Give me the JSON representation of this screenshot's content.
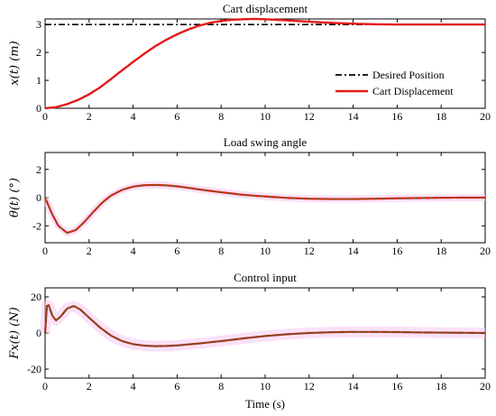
{
  "colors": {
    "desired": "#000000",
    "cart": "#e31a1c",
    "swing": "#e31a1c",
    "swing_overlay": "#6b6b10",
    "control": "#c0392b",
    "control_overlay": "#6b4a10",
    "band": "#f6c9f3"
  },
  "xlabel": "Time (s)",
  "chart_data": [
    {
      "type": "line",
      "title": "Cart displacement",
      "ylabel": "x(t) (m)",
      "xlim": [
        0,
        20
      ],
      "ylim": [
        0,
        3.2
      ],
      "xticks": [
        "0",
        "2",
        "4",
        "6",
        "8",
        "10",
        "12",
        "14",
        "16",
        "18",
        "20"
      ],
      "yticks": [
        "0",
        "1",
        "2",
        "3"
      ],
      "legend_position": "bottom-right",
      "series": [
        {
          "name": "Desired Position",
          "style": "dashdot",
          "x": [
            0,
            20
          ],
          "y": [
            3,
            3
          ]
        },
        {
          "name": "Cart Displacement",
          "style": "solid",
          "x": [
            0,
            0.5,
            1,
            1.5,
            2,
            2.5,
            3,
            3.5,
            4,
            4.5,
            5,
            5.5,
            6,
            6.5,
            7,
            7.5,
            8,
            8.5,
            9,
            9.5,
            10,
            11,
            12,
            13,
            14,
            15,
            16,
            17,
            18,
            19,
            20
          ],
          "y": [
            0,
            0.04,
            0.15,
            0.3,
            0.5,
            0.75,
            1.05,
            1.36,
            1.66,
            1.95,
            2.22,
            2.45,
            2.65,
            2.82,
            2.96,
            3.06,
            3.13,
            3.17,
            3.19,
            3.2,
            3.19,
            3.15,
            3.1,
            3.06,
            3.03,
            3.01,
            3.0,
            3.0,
            3.0,
            3.0,
            3.0
          ]
        }
      ]
    },
    {
      "type": "line",
      "title": "Load swing angle",
      "ylabel": "θ(t) (°)",
      "xlim": [
        0,
        20
      ],
      "ylim": [
        -3.2,
        3.2
      ],
      "xticks": [
        "0",
        "2",
        "4",
        "6",
        "8",
        "10",
        "12",
        "14",
        "16",
        "18",
        "20"
      ],
      "yticks": [
        "-2",
        "0",
        "2"
      ],
      "series": [
        {
          "style": "solid",
          "x": [
            0,
            0.3,
            0.6,
            1.0,
            1.4,
            1.8,
            2.2,
            2.6,
            3.0,
            3.5,
            4.0,
            4.5,
            5.0,
            5.5,
            6.0,
            6.5,
            7.0,
            8.0,
            9.0,
            10.0,
            11.0,
            12.0,
            13.0,
            14.0,
            15.0,
            16.0,
            17.0,
            18.0,
            19.0,
            20.0
          ],
          "y": [
            0,
            -1.1,
            -2.0,
            -2.5,
            -2.3,
            -1.7,
            -1.0,
            -0.35,
            0.15,
            0.55,
            0.78,
            0.88,
            0.9,
            0.87,
            0.8,
            0.7,
            0.58,
            0.38,
            0.2,
            0.08,
            -0.02,
            -0.08,
            -0.1,
            -0.1,
            -0.08,
            -0.05,
            -0.03,
            -0.01,
            0.0,
            0.0
          ]
        }
      ]
    },
    {
      "type": "line",
      "title": "Control input",
      "ylabel": "Fx(t) (N)",
      "xlim": [
        0,
        20
      ],
      "ylim": [
        -25,
        25
      ],
      "xticks": [
        "0",
        "2",
        "4",
        "6",
        "8",
        "10",
        "12",
        "14",
        "16",
        "18",
        "20"
      ],
      "yticks": [
        "-20",
        "0",
        "20"
      ],
      "series": [
        {
          "style": "solid",
          "x": [
            0,
            0.1,
            0.2,
            0.35,
            0.5,
            0.7,
            1.0,
            1.3,
            1.6,
            2.0,
            2.5,
            3.0,
            3.5,
            4.0,
            4.5,
            5.0,
            5.5,
            6.0,
            7.0,
            8.0,
            9.0,
            10.0,
            11.0,
            12.0,
            13.0,
            14.0,
            15.0,
            16.0,
            17.0,
            18.0,
            19.0,
            20.0
          ],
          "y": [
            0,
            18,
            14,
            9,
            7,
            9,
            13.5,
            15,
            13,
            8.5,
            3.0,
            -1.5,
            -4.5,
            -6.2,
            -7.0,
            -7.3,
            -7.2,
            -6.9,
            -5.8,
            -4.5,
            -3.0,
            -1.7,
            -0.7,
            0.0,
            0.4,
            0.6,
            0.6,
            0.5,
            0.3,
            0.2,
            0.1,
            0.0
          ]
        }
      ]
    }
  ]
}
